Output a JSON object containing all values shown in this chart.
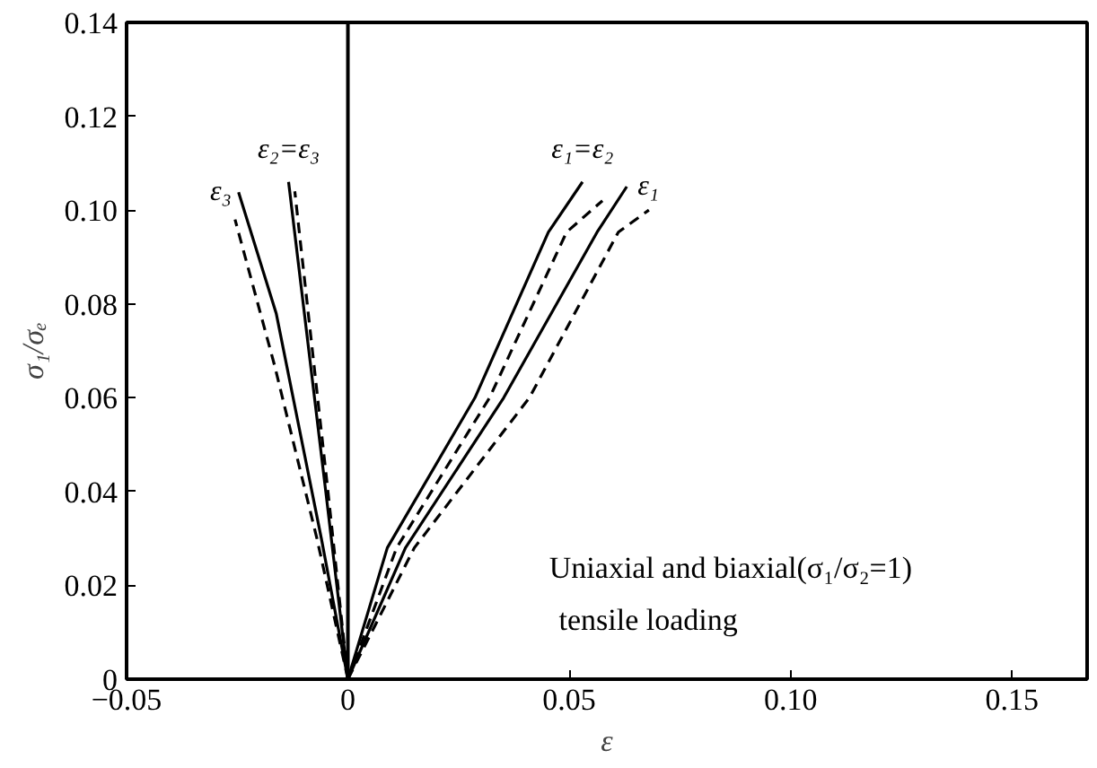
{
  "chart_data": {
    "type": "line",
    "xlabel": "ε",
    "ylabel": "σ₁/σₑ",
    "xlim": [
      -0.05,
      0.167
    ],
    "ylim": [
      0,
      0.14
    ],
    "xticks": [
      {
        "value": -0.05,
        "label": "−0.05"
      },
      0,
      0.05,
      {
        "value": 0.1,
        "label": "0.10"
      },
      0.15
    ],
    "yticks": [
      0,
      0.02,
      0.04,
      0.06,
      0.08,
      {
        "value": 0.1,
        "label": "0.10"
      },
      0.12,
      0.14
    ],
    "grid": false,
    "marker": "none",
    "series": [
      {
        "name": "ε₃",
        "color": "#000000",
        "line_style": "solid",
        "x": [
          0,
          -0.006,
          -0.0162,
          -0.0247
        ],
        "values": [
          0,
          0.03,
          0.078,
          0.1038
        ]
      },
      {
        "color": "#000000",
        "line_style": "dashed",
        "x": [
          0,
          -0.007,
          -0.0166,
          -0.0255
        ],
        "values": [
          0,
          0.03,
          0.067,
          0.098
        ]
      },
      {
        "name": "ε₂=ε₃",
        "color": "#000000",
        "line_style": "solid",
        "x": [
          0,
          -0.005,
          -0.0134
        ],
        "values": [
          0,
          0.04,
          0.106
        ]
      },
      {
        "color": "#000000",
        "line_style": "dashed",
        "x": [
          0,
          -0.0045,
          -0.012
        ],
        "values": [
          0,
          0.04,
          0.104
        ]
      },
      {
        "name": "ε₁=ε₂",
        "color": "#000000",
        "line_style": "solid",
        "x": [
          0,
          0.0089,
          0.0287,
          0.0453,
          0.053
        ],
        "values": [
          0,
          0.028,
          0.06,
          0.0953,
          0.106
        ]
      },
      {
        "color": "#000000",
        "line_style": "dashed",
        "x": [
          0,
          0.011,
          0.032,
          0.0494,
          0.0575
        ],
        "values": [
          0,
          0.028,
          0.06,
          0.0953,
          0.102
        ]
      },
      {
        "name": "ε₁",
        "color": "#000000",
        "line_style": "solid",
        "x": [
          0,
          0.013,
          0.0352,
          0.0563,
          0.063
        ],
        "values": [
          0,
          0.028,
          0.06,
          0.0953,
          0.105
        ]
      },
      {
        "color": "#000000",
        "line_style": "dashed",
        "x": [
          0,
          0.015,
          0.041,
          0.0611,
          0.068
        ],
        "values": [
          0,
          0.028,
          0.06,
          0.0953,
          0.1
        ]
      }
    ],
    "ref_lines": [
      {
        "axis": "x",
        "value": 0,
        "color": "#000000",
        "line_style": "solid"
      }
    ],
    "annotations": [
      "Uniaxial and biaxial(σ₁/σ₂=1)",
      "tensile loading"
    ]
  }
}
